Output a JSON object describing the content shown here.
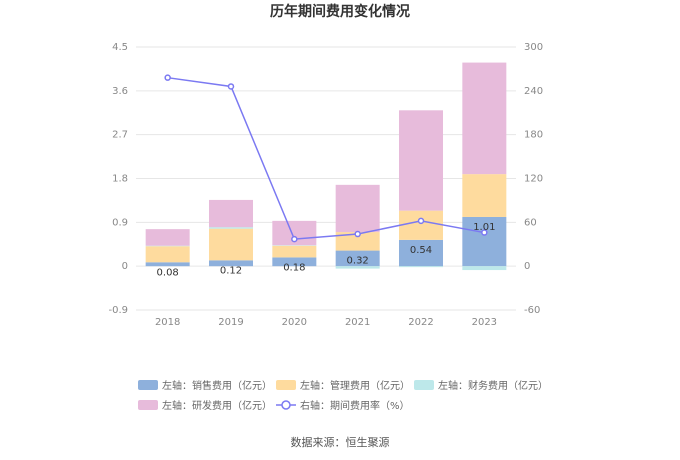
{
  "title": "历年期间费用变化情况",
  "source": "数据来源：恒生聚源",
  "chart_data": {
    "type": "bar",
    "stacked": true,
    "categories": [
      "2018",
      "2019",
      "2020",
      "2021",
      "2022",
      "2023"
    ],
    "y_left": {
      "ticks": [
        "-0.9",
        "0",
        "0.9",
        "1.8",
        "2.7",
        "3.6",
        "4.5"
      ],
      "ylim": [
        -0.9,
        4.5
      ]
    },
    "y_right": {
      "ticks": [
        "-60",
        "0",
        "60",
        "120",
        "180",
        "240",
        "300"
      ],
      "ylim": [
        -60,
        300
      ]
    },
    "grid": true,
    "legend_position": "bottom",
    "series": [
      {
        "name": "左轴：销售费用（亿元）",
        "axis": "left",
        "color": "#8eb0dc",
        "values": [
          0.08,
          0.12,
          0.18,
          0.32,
          0.54,
          1.01
        ],
        "labels": [
          "0.08",
          "0.12",
          "0.18",
          "0.32",
          "0.54",
          "1.01"
        ]
      },
      {
        "name": "左轴：管理费用（亿元）",
        "axis": "left",
        "color": "#fedb9e",
        "values": [
          0.33,
          0.65,
          0.24,
          0.38,
          0.6,
          0.88
        ]
      },
      {
        "name": "左轴：财务费用（亿元）",
        "axis": "left",
        "color": "#bde8ea",
        "values": [
          0.01,
          0.03,
          0.01,
          -0.05,
          -0.02,
          -0.08
        ]
      },
      {
        "name": "左轴：研发费用（亿元）",
        "axis": "left",
        "color": "#e7bbdb",
        "values": [
          0.34,
          0.56,
          0.5,
          0.97,
          2.06,
          2.29
        ]
      },
      {
        "name": "右轴：期间费用率（%）",
        "axis": "right",
        "type": "line",
        "color": "#7b79f2",
        "values": [
          258,
          246,
          37,
          44,
          62,
          46
        ]
      }
    ]
  }
}
